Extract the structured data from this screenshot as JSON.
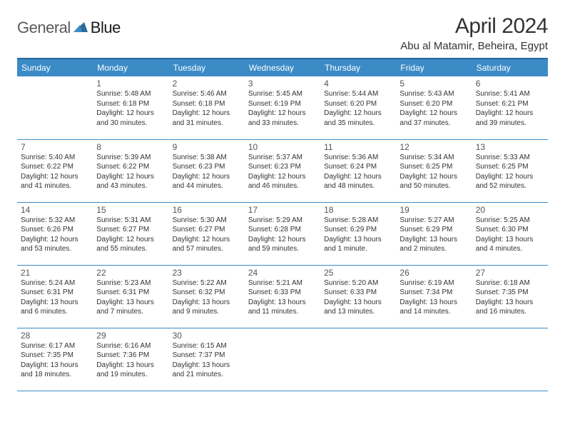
{
  "logo": {
    "part1": "General",
    "part2": "Blue"
  },
  "title": "April 2024",
  "location": "Abu al Matamir, Beheira, Egypt",
  "colors": {
    "header_bg": "#3b8bc6",
    "header_border": "#2a6a9a",
    "row_border": "#3b8bc6",
    "text": "#333333",
    "logo_gray": "#5a5a5a",
    "logo_blue": "#2a6a9a"
  },
  "dayNames": [
    "Sunday",
    "Monday",
    "Tuesday",
    "Wednesday",
    "Thursday",
    "Friday",
    "Saturday"
  ],
  "weeks": [
    [
      {
        "num": "",
        "sunrise": "",
        "sunset": "",
        "daylight": ""
      },
      {
        "num": "1",
        "sunrise": "Sunrise: 5:48 AM",
        "sunset": "Sunset: 6:18 PM",
        "daylight": "Daylight: 12 hours and 30 minutes."
      },
      {
        "num": "2",
        "sunrise": "Sunrise: 5:46 AM",
        "sunset": "Sunset: 6:18 PM",
        "daylight": "Daylight: 12 hours and 31 minutes."
      },
      {
        "num": "3",
        "sunrise": "Sunrise: 5:45 AM",
        "sunset": "Sunset: 6:19 PM",
        "daylight": "Daylight: 12 hours and 33 minutes."
      },
      {
        "num": "4",
        "sunrise": "Sunrise: 5:44 AM",
        "sunset": "Sunset: 6:20 PM",
        "daylight": "Daylight: 12 hours and 35 minutes."
      },
      {
        "num": "5",
        "sunrise": "Sunrise: 5:43 AM",
        "sunset": "Sunset: 6:20 PM",
        "daylight": "Daylight: 12 hours and 37 minutes."
      },
      {
        "num": "6",
        "sunrise": "Sunrise: 5:41 AM",
        "sunset": "Sunset: 6:21 PM",
        "daylight": "Daylight: 12 hours and 39 minutes."
      }
    ],
    [
      {
        "num": "7",
        "sunrise": "Sunrise: 5:40 AM",
        "sunset": "Sunset: 6:22 PM",
        "daylight": "Daylight: 12 hours and 41 minutes."
      },
      {
        "num": "8",
        "sunrise": "Sunrise: 5:39 AM",
        "sunset": "Sunset: 6:22 PM",
        "daylight": "Daylight: 12 hours and 43 minutes."
      },
      {
        "num": "9",
        "sunrise": "Sunrise: 5:38 AM",
        "sunset": "Sunset: 6:23 PM",
        "daylight": "Daylight: 12 hours and 44 minutes."
      },
      {
        "num": "10",
        "sunrise": "Sunrise: 5:37 AM",
        "sunset": "Sunset: 6:23 PM",
        "daylight": "Daylight: 12 hours and 46 minutes."
      },
      {
        "num": "11",
        "sunrise": "Sunrise: 5:36 AM",
        "sunset": "Sunset: 6:24 PM",
        "daylight": "Daylight: 12 hours and 48 minutes."
      },
      {
        "num": "12",
        "sunrise": "Sunrise: 5:34 AM",
        "sunset": "Sunset: 6:25 PM",
        "daylight": "Daylight: 12 hours and 50 minutes."
      },
      {
        "num": "13",
        "sunrise": "Sunrise: 5:33 AM",
        "sunset": "Sunset: 6:25 PM",
        "daylight": "Daylight: 12 hours and 52 minutes."
      }
    ],
    [
      {
        "num": "14",
        "sunrise": "Sunrise: 5:32 AM",
        "sunset": "Sunset: 6:26 PM",
        "daylight": "Daylight: 12 hours and 53 minutes."
      },
      {
        "num": "15",
        "sunrise": "Sunrise: 5:31 AM",
        "sunset": "Sunset: 6:27 PM",
        "daylight": "Daylight: 12 hours and 55 minutes."
      },
      {
        "num": "16",
        "sunrise": "Sunrise: 5:30 AM",
        "sunset": "Sunset: 6:27 PM",
        "daylight": "Daylight: 12 hours and 57 minutes."
      },
      {
        "num": "17",
        "sunrise": "Sunrise: 5:29 AM",
        "sunset": "Sunset: 6:28 PM",
        "daylight": "Daylight: 12 hours and 59 minutes."
      },
      {
        "num": "18",
        "sunrise": "Sunrise: 5:28 AM",
        "sunset": "Sunset: 6:29 PM",
        "daylight": "Daylight: 13 hours and 1 minute."
      },
      {
        "num": "19",
        "sunrise": "Sunrise: 5:27 AM",
        "sunset": "Sunset: 6:29 PM",
        "daylight": "Daylight: 13 hours and 2 minutes."
      },
      {
        "num": "20",
        "sunrise": "Sunrise: 5:25 AM",
        "sunset": "Sunset: 6:30 PM",
        "daylight": "Daylight: 13 hours and 4 minutes."
      }
    ],
    [
      {
        "num": "21",
        "sunrise": "Sunrise: 5:24 AM",
        "sunset": "Sunset: 6:31 PM",
        "daylight": "Daylight: 13 hours and 6 minutes."
      },
      {
        "num": "22",
        "sunrise": "Sunrise: 5:23 AM",
        "sunset": "Sunset: 6:31 PM",
        "daylight": "Daylight: 13 hours and 7 minutes."
      },
      {
        "num": "23",
        "sunrise": "Sunrise: 5:22 AM",
        "sunset": "Sunset: 6:32 PM",
        "daylight": "Daylight: 13 hours and 9 minutes."
      },
      {
        "num": "24",
        "sunrise": "Sunrise: 5:21 AM",
        "sunset": "Sunset: 6:33 PM",
        "daylight": "Daylight: 13 hours and 11 minutes."
      },
      {
        "num": "25",
        "sunrise": "Sunrise: 5:20 AM",
        "sunset": "Sunset: 6:33 PM",
        "daylight": "Daylight: 13 hours and 13 minutes."
      },
      {
        "num": "26",
        "sunrise": "Sunrise: 6:19 AM",
        "sunset": "Sunset: 7:34 PM",
        "daylight": "Daylight: 13 hours and 14 minutes."
      },
      {
        "num": "27",
        "sunrise": "Sunrise: 6:18 AM",
        "sunset": "Sunset: 7:35 PM",
        "daylight": "Daylight: 13 hours and 16 minutes."
      }
    ],
    [
      {
        "num": "28",
        "sunrise": "Sunrise: 6:17 AM",
        "sunset": "Sunset: 7:35 PM",
        "daylight": "Daylight: 13 hours and 18 minutes."
      },
      {
        "num": "29",
        "sunrise": "Sunrise: 6:16 AM",
        "sunset": "Sunset: 7:36 PM",
        "daylight": "Daylight: 13 hours and 19 minutes."
      },
      {
        "num": "30",
        "sunrise": "Sunrise: 6:15 AM",
        "sunset": "Sunset: 7:37 PM",
        "daylight": "Daylight: 13 hours and 21 minutes."
      },
      {
        "num": "",
        "sunrise": "",
        "sunset": "",
        "daylight": ""
      },
      {
        "num": "",
        "sunrise": "",
        "sunset": "",
        "daylight": ""
      },
      {
        "num": "",
        "sunrise": "",
        "sunset": "",
        "daylight": ""
      },
      {
        "num": "",
        "sunrise": "",
        "sunset": "",
        "daylight": ""
      }
    ]
  ]
}
